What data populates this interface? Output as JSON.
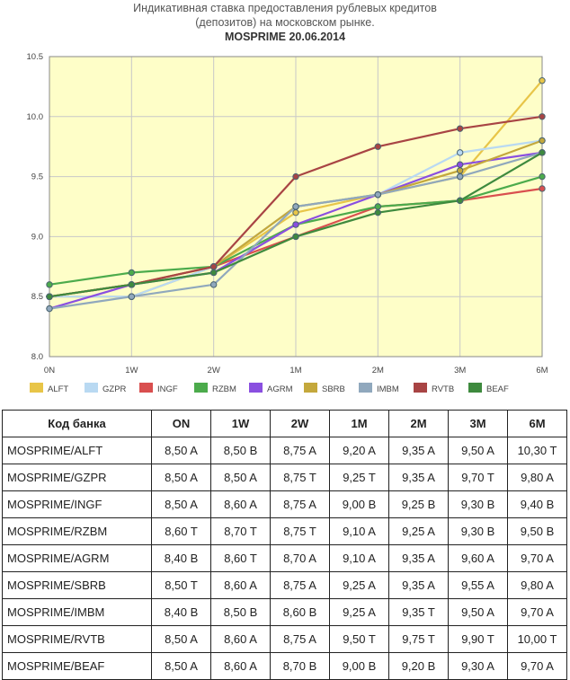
{
  "chart_data": {
    "type": "line",
    "title_lines": [
      "Индикативная ставка предоставления рублевых кредитов",
      "(депозитов) на московском рынке."
    ],
    "subtitle": "MOSPRIME 20.06.2014",
    "categories": [
      "0N",
      "1W",
      "2W",
      "1M",
      "2M",
      "3M",
      "6M"
    ],
    "ylim": [
      8.0,
      10.5
    ],
    "yticks": [
      "8.0",
      "8.5",
      "9.0",
      "9.5",
      "10.0",
      "10.5"
    ],
    "ytick_values": [
      8.0,
      8.5,
      9.0,
      9.5,
      10.0,
      10.5
    ],
    "grid": true,
    "plot_background": "#fefec8",
    "legend_position": "bottom-left",
    "series": [
      {
        "name": "ALFT",
        "color": "#e8c548",
        "values": [
          8.5,
          8.5,
          8.75,
          9.2,
          9.35,
          9.5,
          10.3
        ]
      },
      {
        "name": "GZPR",
        "color": "#b9d9f2",
        "values": [
          8.5,
          8.5,
          8.75,
          9.25,
          9.35,
          9.7,
          9.8
        ]
      },
      {
        "name": "INGF",
        "color": "#d94f4f",
        "values": [
          8.5,
          8.6,
          8.75,
          9.0,
          9.25,
          9.3,
          9.4
        ]
      },
      {
        "name": "RZBM",
        "color": "#4cab4c",
        "values": [
          8.6,
          8.7,
          8.75,
          9.1,
          9.25,
          9.3,
          9.5
        ]
      },
      {
        "name": "AGRM",
        "color": "#8a4fe0",
        "values": [
          8.4,
          8.6,
          8.7,
          9.1,
          9.35,
          9.6,
          9.7
        ]
      },
      {
        "name": "SBRB",
        "color": "#c4a83c",
        "values": [
          8.5,
          8.6,
          8.75,
          9.25,
          9.35,
          9.55,
          9.8
        ]
      },
      {
        "name": "IMBM",
        "color": "#90a8bd",
        "values": [
          8.4,
          8.5,
          8.6,
          9.25,
          9.35,
          9.5,
          9.7
        ]
      },
      {
        "name": "RVTB",
        "color": "#a84444",
        "values": [
          8.5,
          8.6,
          8.75,
          9.5,
          9.75,
          9.9,
          10.0
        ]
      },
      {
        "name": "BEAF",
        "color": "#3e8a3e",
        "values": [
          8.5,
          8.6,
          8.7,
          9.0,
          9.2,
          9.3,
          9.7
        ]
      }
    ]
  },
  "table": {
    "header": [
      "Код банка",
      "ON",
      "1W",
      "2W",
      "1M",
      "2M",
      "3M",
      "6M"
    ],
    "rows": [
      [
        "MOSPRIME/ALFT",
        "8,50 A",
        "8,50 B",
        "8,75 A",
        "9,20 A",
        "9,35 A",
        "9,50 A",
        "10,30 T"
      ],
      [
        "MOSPRIME/GZPR",
        "8,50 A",
        "8,50 A",
        "8,75 T",
        "9,25 T",
        "9,35 A",
        "9,70 T",
        "9,80 A"
      ],
      [
        "MOSPRIME/INGF",
        "8,50 A",
        "8,60 A",
        "8,75 A",
        "9,00 B",
        "9,25 B",
        "9,30 B",
        "9,40 B"
      ],
      [
        "MOSPRIME/RZBM",
        "8,60 T",
        "8,70 T",
        "8,75 T",
        "9,10 A",
        "9,25 A",
        "9,30 B",
        "9,50 B"
      ],
      [
        "MOSPRIME/AGRM",
        "8,40 B",
        "8,60 T",
        "8,70 A",
        "9,10 A",
        "9,35 A",
        "9,60 A",
        "9,70 A"
      ],
      [
        "MOSPRIME/SBRB",
        "8,50 T",
        "8,60 A",
        "8,75 A",
        "9,25 A",
        "9,35 A",
        "9,55 A",
        "9,80 A"
      ],
      [
        "MOSPRIME/IMBM",
        "8,40 B",
        "8,50 B",
        "8,60 B",
        "9,25 A",
        "9,35 T",
        "9,50 A",
        "9,70 A"
      ],
      [
        "MOSPRIME/RVTB",
        "8,50 A",
        "8,60 A",
        "8,75 A",
        "9,50 T",
        "9,75 T",
        "9,90 T",
        "10,00 T"
      ],
      [
        "MOSPRIME/BEAF",
        "8,50 A",
        "8,60 A",
        "8,70 B",
        "9,00 B",
        "9,20 B",
        "9,30 A",
        "9,70 A"
      ]
    ]
  }
}
